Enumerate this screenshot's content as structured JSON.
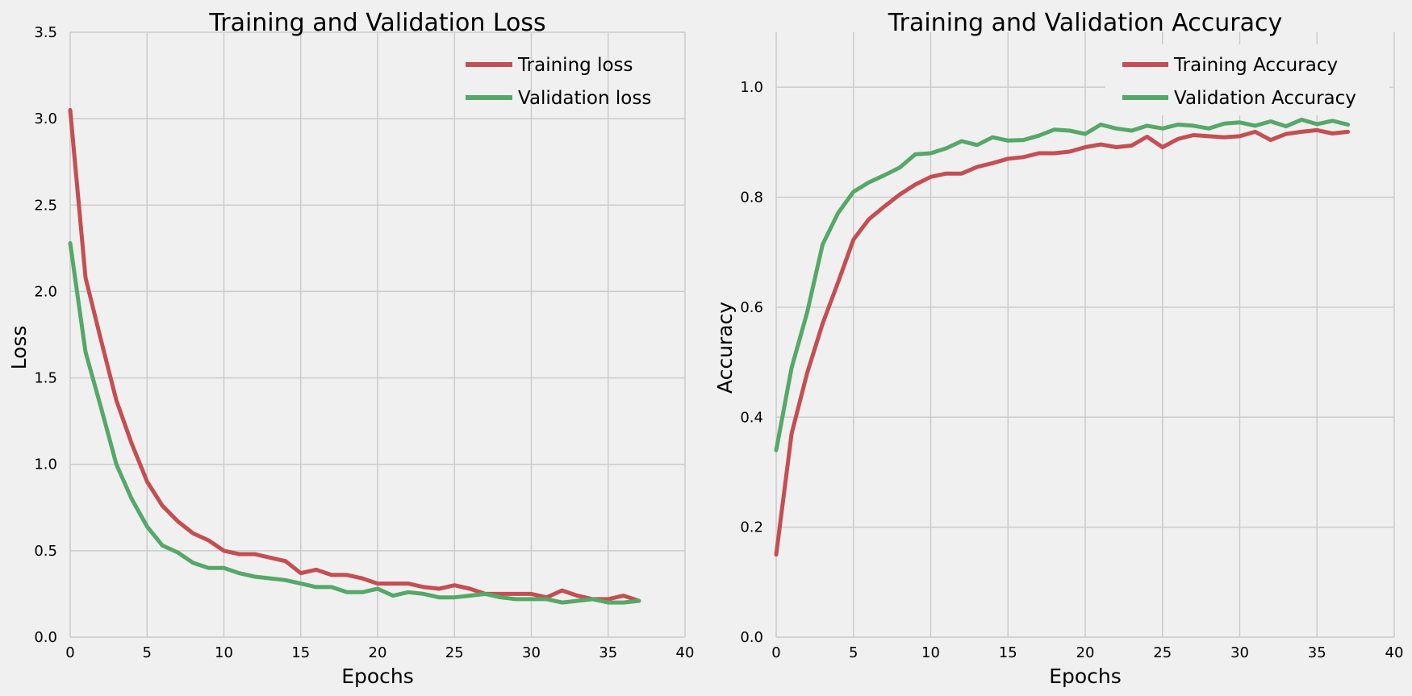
{
  "colors": {
    "background": "#f0f0f0",
    "grid": "#cbcbcb",
    "training": "#c44e52",
    "validation": "#55a868"
  },
  "chart_data": [
    {
      "type": "line",
      "title": "Training and Validation Loss",
      "xlabel": "Epochs",
      "ylabel": "Loss",
      "xlim": [
        0,
        40
      ],
      "ylim": [
        0,
        3.5
      ],
      "xticks": [
        0,
        5,
        10,
        15,
        20,
        25,
        30,
        35,
        40
      ],
      "yticks": [
        0,
        0.5,
        1,
        1.5,
        2,
        2.5,
        3,
        3.5
      ],
      "xtick_labels": [
        "0",
        "5",
        "10",
        "15",
        "20",
        "25",
        "30",
        "35",
        "40"
      ],
      "ytick_labels": [
        "0.0",
        "0.5",
        "1.0",
        "1.5",
        "2.0",
        "2.5",
        "3.0",
        "3.5"
      ],
      "legend_position": "top-right",
      "series": [
        {
          "name": "Training loss",
          "color": "#c44e52",
          "x": [
            0,
            1,
            2,
            3,
            4,
            5,
            6,
            7,
            8,
            9,
            10,
            11,
            12,
            13,
            14,
            15,
            16,
            17,
            18,
            19,
            20,
            21,
            22,
            23,
            24,
            25,
            26,
            27,
            28,
            29,
            30,
            31,
            32,
            33,
            34,
            35,
            36,
            37
          ],
          "values": [
            3.05,
            2.08,
            1.72,
            1.37,
            1.12,
            0.9,
            0.76,
            0.67,
            0.6,
            0.56,
            0.5,
            0.48,
            0.48,
            0.46,
            0.44,
            0.37,
            0.39,
            0.36,
            0.36,
            0.34,
            0.31,
            0.31,
            0.31,
            0.29,
            0.28,
            0.3,
            0.28,
            0.25,
            0.25,
            0.25,
            0.25,
            0.23,
            0.27,
            0.24,
            0.22,
            0.22,
            0.24,
            0.21
          ]
        },
        {
          "name": "Validation loss",
          "color": "#55a868",
          "x": [
            0,
            1,
            2,
            3,
            4,
            5,
            6,
            7,
            8,
            9,
            10,
            11,
            12,
            13,
            14,
            15,
            16,
            17,
            18,
            19,
            20,
            21,
            22,
            23,
            24,
            25,
            26,
            27,
            28,
            29,
            30,
            31,
            32,
            33,
            34,
            35,
            36,
            37
          ],
          "values": [
            2.28,
            1.65,
            1.33,
            1.0,
            0.8,
            0.64,
            0.53,
            0.49,
            0.43,
            0.4,
            0.4,
            0.37,
            0.35,
            0.34,
            0.33,
            0.31,
            0.29,
            0.29,
            0.26,
            0.26,
            0.28,
            0.24,
            0.26,
            0.25,
            0.23,
            0.23,
            0.24,
            0.25,
            0.23,
            0.22,
            0.22,
            0.22,
            0.2,
            0.21,
            0.22,
            0.2,
            0.2,
            0.21
          ]
        }
      ]
    },
    {
      "type": "line",
      "title": "Training and Validation Accuracy",
      "xlabel": "Epochs",
      "ylabel": "Accuracy",
      "xlim": [
        0,
        40
      ],
      "ylim": [
        0,
        1.1
      ],
      "xticks": [
        0,
        5,
        10,
        15,
        20,
        25,
        30,
        35,
        40
      ],
      "yticks": [
        0,
        0.2,
        0.4,
        0.6,
        0.8,
        1.0
      ],
      "xtick_labels": [
        "0",
        "5",
        "10",
        "15",
        "20",
        "25",
        "30",
        "35",
        "40"
      ],
      "ytick_labels": [
        "0.0",
        "0.2",
        "0.4",
        "0.6",
        "0.8",
        "1.0"
      ],
      "legend_position": "top-right",
      "series": [
        {
          "name": "Training Accuracy",
          "color": "#c44e52",
          "x": [
            0,
            1,
            2,
            3,
            4,
            5,
            6,
            7,
            8,
            9,
            10,
            11,
            12,
            13,
            14,
            15,
            16,
            17,
            18,
            19,
            20,
            21,
            22,
            23,
            24,
            25,
            26,
            27,
            28,
            29,
            30,
            31,
            32,
            33,
            34,
            35,
            36,
            37
          ],
          "values": [
            0.15,
            0.37,
            0.48,
            0.57,
            0.645,
            0.723,
            0.76,
            0.783,
            0.805,
            0.823,
            0.837,
            0.843,
            0.843,
            0.855,
            0.862,
            0.87,
            0.873,
            0.88,
            0.88,
            0.883,
            0.891,
            0.896,
            0.891,
            0.894,
            0.91,
            0.891,
            0.906,
            0.913,
            0.911,
            0.909,
            0.911,
            0.919,
            0.904,
            0.915,
            0.919,
            0.922,
            0.916,
            0.919
          ]
        },
        {
          "name": "Validation Accuracy",
          "color": "#55a868",
          "x": [
            0,
            1,
            2,
            3,
            4,
            5,
            6,
            7,
            8,
            9,
            10,
            11,
            12,
            13,
            14,
            15,
            16,
            17,
            18,
            19,
            20,
            21,
            22,
            23,
            24,
            25,
            26,
            27,
            28,
            29,
            30,
            31,
            32,
            33,
            34,
            35,
            36,
            37
          ],
          "values": [
            0.34,
            0.49,
            0.59,
            0.714,
            0.771,
            0.81,
            0.827,
            0.84,
            0.854,
            0.878,
            0.88,
            0.889,
            0.902,
            0.895,
            0.909,
            0.903,
            0.904,
            0.912,
            0.923,
            0.921,
            0.915,
            0.932,
            0.925,
            0.921,
            0.93,
            0.925,
            0.932,
            0.93,
            0.925,
            0.934,
            0.936,
            0.93,
            0.938,
            0.929,
            0.941,
            0.933,
            0.939,
            0.932
          ]
        }
      ]
    }
  ]
}
